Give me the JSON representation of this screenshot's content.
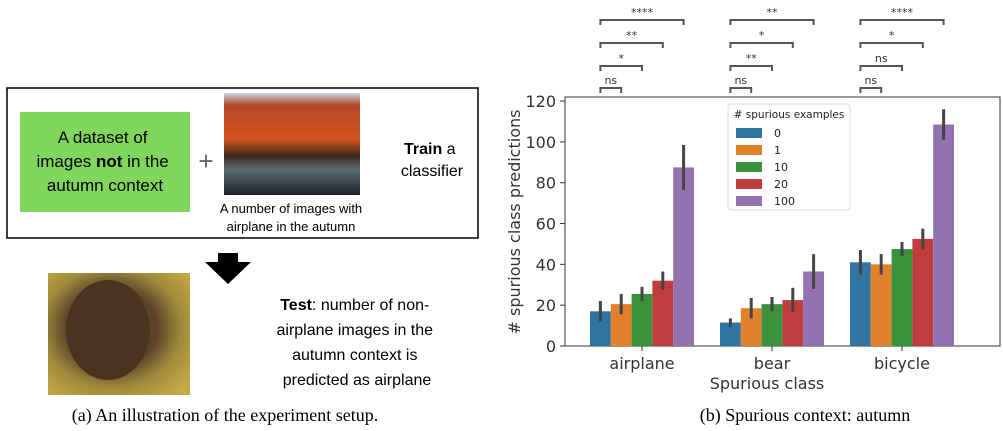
{
  "diagram": {
    "dataset_box": {
      "lines": [
        [
          "A dataset of"
        ],
        [
          "images ",
          "not",
          " in the"
        ],
        [
          "autumn context"
        ]
      ]
    },
    "plus": "+",
    "image_caption": [
      "A number of images with",
      "airplane in the autumn"
    ],
    "train": [
      [
        "Train",
        " a"
      ],
      [
        "classifier"
      ]
    ],
    "test": [
      [
        "Test",
        ": number of non-"
      ],
      [
        "airplane images in the"
      ],
      [
        "autumn context is"
      ],
      [
        "predicted as airplane"
      ]
    ],
    "caption": "(a)  An illustration of the experiment setup."
  },
  "chart_data": {
    "type": "bar",
    "caption": "(b)  Spurious context: autumn",
    "xlabel": "Spurious class",
    "ylabel": "# spurious class predictions",
    "categories": [
      "airplane",
      "bear",
      "bicycle"
    ],
    "legend_title": "# spurious examples",
    "series": [
      {
        "name": "0",
        "color": "#3274a1",
        "values": [
          17,
          11.5,
          41
        ],
        "errors": [
          5,
          2,
          6
        ]
      },
      {
        "name": "1",
        "color": "#e1812c",
        "values": [
          20.5,
          18.5,
          40
        ],
        "errors": [
          5,
          5,
          5
        ]
      },
      {
        "name": "10",
        "color": "#3a923a",
        "values": [
          25.5,
          20.5,
          47.5
        ],
        "errors": [
          3.5,
          3.5,
          3.5
        ]
      },
      {
        "name": "20",
        "color": "#c03d3e",
        "values": [
          32,
          22.5,
          52.5
        ],
        "errors": [
          4.5,
          6,
          5
        ]
      },
      {
        "name": "100",
        "color": "#9372b2",
        "values": [
          87.5,
          36.5,
          108.5
        ],
        "errors": [
          11,
          8.5,
          7.5
        ]
      }
    ],
    "significance": [
      [
        "ns",
        "*",
        "**",
        "****"
      ],
      [
        "ns",
        "**",
        "*",
        "**"
      ],
      [
        "ns",
        "ns",
        "*",
        "****"
      ]
    ],
    "ylim": [
      0,
      122
    ],
    "yticks": [
      0,
      20,
      40,
      60,
      80,
      100,
      120
    ]
  }
}
